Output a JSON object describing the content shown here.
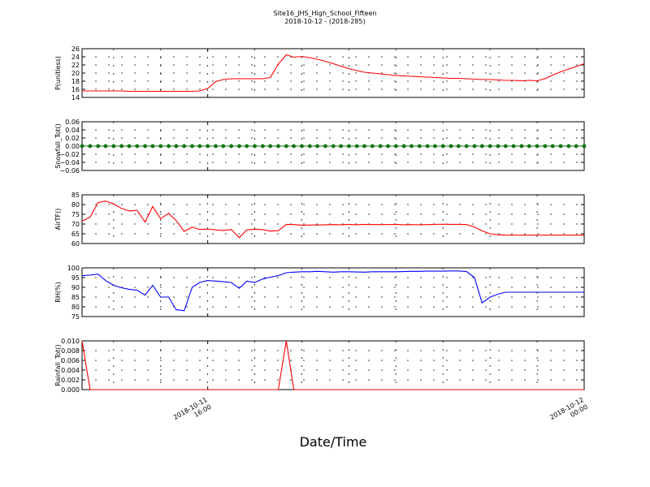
{
  "title": "Site16_JHS_High_School_Fifteen",
  "subtitle": "2018-10-12 - (2018-285)",
  "xlabel": "Date/Time",
  "x_ticks": [
    {
      "t": 16,
      "lines": [
        "2018-10-11",
        "16:00"
      ]
    },
    {
      "t": 24,
      "lines": [
        "2018-10-12",
        "00:00"
      ]
    }
  ],
  "chart_data": [
    {
      "type": "line",
      "ylabel": "P(unitless)",
      "ylim": [
        14,
        26
      ],
      "yticks": [
        "14",
        "16",
        "18",
        "20",
        "22",
        "24",
        "26"
      ],
      "color": "#ff0000",
      "markers": false,
      "x": [
        13.33,
        13.5,
        13.67,
        13.83,
        14,
        14.17,
        14.33,
        14.5,
        14.67,
        14.83,
        15,
        15.17,
        15.33,
        15.5,
        15.67,
        15.83,
        16,
        16.17,
        16.33,
        16.5,
        16.67,
        16.83,
        17,
        17.17,
        17.33,
        17.5,
        17.67,
        17.83,
        18,
        18.17,
        18.33,
        18.5,
        18.67,
        18.83,
        19,
        19.17,
        19.33,
        19.5,
        19.67,
        19.83,
        20,
        20.17,
        20.33,
        20.5,
        20.67,
        20.83,
        21,
        21.17,
        21.33,
        21.5,
        21.67,
        21.83,
        22,
        22.17,
        22.33,
        22.5,
        22.67,
        22.83,
        23,
        23.17,
        23.33,
        23.5,
        23.67,
        23.83,
        24
      ],
      "values": [
        15.6,
        15.6,
        15.6,
        15.6,
        15.6,
        15.6,
        15.5,
        15.5,
        15.5,
        15.5,
        15.5,
        15.5,
        15.5,
        15.5,
        15.5,
        15.6,
        16.2,
        17.9,
        18.4,
        18.6,
        18.6,
        18.6,
        18.6,
        18.6,
        18.9,
        22.2,
        24.5,
        23.9,
        24.1,
        23.8,
        23.4,
        22.9,
        22.3,
        21.7,
        21.1,
        20.6,
        20.2,
        20.0,
        19.8,
        19.6,
        19.4,
        19.3,
        19.2,
        19.1,
        19.0,
        18.9,
        18.8,
        18.7,
        18.7,
        18.6,
        18.5,
        18.4,
        18.4,
        18.3,
        18.2,
        18.2,
        18.1,
        18.2,
        18.1,
        18.6,
        19.5,
        20.3,
        21.0,
        21.6,
        22.3
      ]
    },
    {
      "type": "line",
      "ylabel": "Snowfall_Tot()",
      "ylim": [
        -0.06,
        0.06
      ],
      "yticks": [
        "−0.06",
        "−0.04",
        "−0.02",
        "0.00",
        "0.02",
        "0.04",
        "0.06"
      ],
      "color": "#008000",
      "markers": true,
      "x": [
        13.33,
        13.5,
        13.67,
        13.83,
        14,
        14.17,
        14.33,
        14.5,
        14.67,
        14.83,
        15,
        15.17,
        15.33,
        15.5,
        15.67,
        15.83,
        16,
        16.17,
        16.33,
        16.5,
        16.67,
        16.83,
        17,
        17.17,
        17.33,
        17.5,
        17.67,
        17.83,
        18,
        18.17,
        18.33,
        18.5,
        18.67,
        18.83,
        19,
        19.17,
        19.33,
        19.5,
        19.67,
        19.83,
        20,
        20.17,
        20.33,
        20.5,
        20.67,
        20.83,
        21,
        21.17,
        21.33,
        21.5,
        21.67,
        21.83,
        22,
        22.17,
        22.33,
        22.5,
        22.67,
        22.83,
        23,
        23.17,
        23.33,
        23.5,
        23.67,
        23.83,
        24
      ],
      "values": [
        0,
        0,
        0,
        0,
        0,
        0,
        0,
        0,
        0,
        0,
        0,
        0,
        0,
        0,
        0,
        0,
        0,
        0,
        0,
        0,
        0,
        0,
        0,
        0,
        0,
        0,
        0,
        0,
        0,
        0,
        0,
        0,
        0,
        0,
        0,
        0,
        0,
        0,
        0,
        0,
        0,
        0,
        0,
        0,
        0,
        0,
        0,
        0,
        0,
        0,
        0,
        0,
        0,
        0,
        0,
        0,
        0,
        0,
        0,
        0,
        0,
        0,
        0,
        0,
        0
      ]
    },
    {
      "type": "line",
      "ylabel": "AirTF()",
      "ylim": [
        60,
        85
      ],
      "yticks": [
        "60",
        "65",
        "70",
        "75",
        "80",
        "85"
      ],
      "color": "#ff0000",
      "markers": false,
      "x": [
        13.33,
        13.5,
        13.67,
        13.83,
        14,
        14.17,
        14.33,
        14.5,
        14.67,
        14.83,
        15,
        15.17,
        15.33,
        15.5,
        15.67,
        15.83,
        16,
        16.17,
        16.33,
        16.5,
        16.67,
        16.83,
        17,
        17.17,
        17.33,
        17.5,
        17.67,
        17.83,
        18,
        18.17,
        18.33,
        18.5,
        18.67,
        18.83,
        19,
        19.17,
        19.33,
        19.5,
        19.67,
        19.83,
        20,
        20.17,
        20.33,
        20.5,
        20.67,
        20.83,
        21,
        21.17,
        21.33,
        21.5,
        21.67,
        21.83,
        22,
        22.17,
        22.33,
        22.5,
        22.67,
        22.83,
        23,
        23.17,
        23.33,
        23.5,
        23.67,
        23.83,
        24
      ],
      "values": [
        71.5,
        73.5,
        81.0,
        81.8,
        80.3,
        78.0,
        76.7,
        77.0,
        71.0,
        79.0,
        72.8,
        75.5,
        71.8,
        66.2,
        68.4,
        67.2,
        67.4,
        67.0,
        66.7,
        67.2,
        63.0,
        67.0,
        67.3,
        67.1,
        66.4,
        66.6,
        69.8,
        69.7,
        69.4,
        69.5,
        69.5,
        69.6,
        69.7,
        69.6,
        69.8,
        69.6,
        69.8,
        69.7,
        69.7,
        69.7,
        69.8,
        69.6,
        69.7,
        69.6,
        69.7,
        69.8,
        69.9,
        69.8,
        69.8,
        69.7,
        68.5,
        66.5,
        65.0,
        64.5,
        64.3,
        64.3,
        64.3,
        64.3,
        64.3,
        64.3,
        64.3,
        64.3,
        64.3,
        64.3,
        64.3
      ]
    },
    {
      "type": "line",
      "ylabel": "RH(%)",
      "ylim": [
        75,
        100
      ],
      "yticks": [
        "75",
        "80",
        "85",
        "90",
        "95",
        "100"
      ],
      "color": "#0000ff",
      "markers": false,
      "x": [
        13.33,
        13.5,
        13.67,
        13.83,
        14,
        14.17,
        14.33,
        14.5,
        14.67,
        14.83,
        15,
        15.17,
        15.33,
        15.5,
        15.67,
        15.83,
        16,
        16.17,
        16.33,
        16.5,
        16.67,
        16.83,
        17,
        17.17,
        17.33,
        17.5,
        17.67,
        17.83,
        18,
        18.17,
        18.33,
        18.5,
        18.67,
        18.83,
        19,
        19.17,
        19.33,
        19.5,
        19.67,
        19.83,
        20,
        20.17,
        20.33,
        20.5,
        20.67,
        20.83,
        21,
        21.17,
        21.33,
        21.5,
        21.67,
        21.83,
        22,
        22.17,
        22.33,
        22.5,
        22.67,
        22.83,
        23,
        23.17,
        23.33,
        23.5,
        23.67,
        23.83,
        24
      ],
      "values": [
        96.0,
        96.3,
        96.8,
        93.5,
        91.0,
        89.8,
        89.0,
        88.5,
        86.0,
        91.0,
        85.0,
        85.0,
        78.5,
        78.0,
        90.0,
        92.5,
        93.5,
        93.2,
        92.9,
        92.5,
        89.5,
        93.2,
        92.5,
        94.3,
        95.2,
        96.0,
        97.5,
        97.8,
        98.0,
        98.0,
        98.2,
        98.0,
        97.8,
        98.0,
        98.0,
        97.9,
        97.8,
        98.0,
        98.0,
        98.0,
        98.0,
        98.1,
        98.2,
        98.2,
        98.3,
        98.3,
        98.3,
        98.4,
        98.4,
        98.1,
        95.0,
        82.0,
        85.0,
        86.5,
        87.5,
        87.5,
        87.5,
        87.5,
        87.5,
        87.5,
        87.5,
        87.5,
        87.5,
        87.5,
        87.5
      ]
    },
    {
      "type": "line",
      "ylabel": "Rainfall_Tot()",
      "ylim": [
        0,
        0.01
      ],
      "yticks": [
        "0.000",
        "0.002",
        "0.004",
        "0.006",
        "0.008",
        "0.010"
      ],
      "color": "#ff0000",
      "markers": false,
      "x": [
        13.33,
        13.5,
        13.67,
        13.83,
        14,
        14.17,
        14.33,
        14.5,
        14.67,
        14.83,
        15,
        15.17,
        15.33,
        15.5,
        15.67,
        15.83,
        16,
        16.17,
        16.33,
        16.5,
        16.67,
        16.83,
        17,
        17.17,
        17.33,
        17.5,
        17.67,
        17.83,
        18,
        18.17,
        18.33,
        18.5,
        18.67,
        18.83,
        19,
        19.17,
        19.33,
        19.5,
        19.67,
        19.83,
        20,
        20.17,
        20.33,
        20.5,
        20.67,
        20.83,
        21,
        21.17,
        21.33,
        21.5,
        21.67,
        21.83,
        22,
        22.17,
        22.33,
        22.5,
        22.67,
        22.83,
        23,
        23.17,
        23.33,
        23.5,
        23.67,
        23.83,
        24
      ],
      "values": [
        0.01,
        0,
        0,
        0,
        0,
        0,
        0,
        0,
        0,
        0,
        0,
        0,
        0,
        0,
        0,
        0,
        0,
        0,
        0,
        0,
        0,
        0,
        0,
        0,
        0,
        0,
        0.01,
        0,
        0,
        0,
        0,
        0,
        0,
        0,
        0,
        0,
        0,
        0,
        0,
        0,
        0,
        0,
        0,
        0,
        0,
        0,
        0,
        0,
        0,
        0,
        0,
        0,
        0,
        0,
        0,
        0,
        0,
        0,
        0,
        0,
        0,
        0,
        0,
        0,
        0
      ]
    }
  ]
}
